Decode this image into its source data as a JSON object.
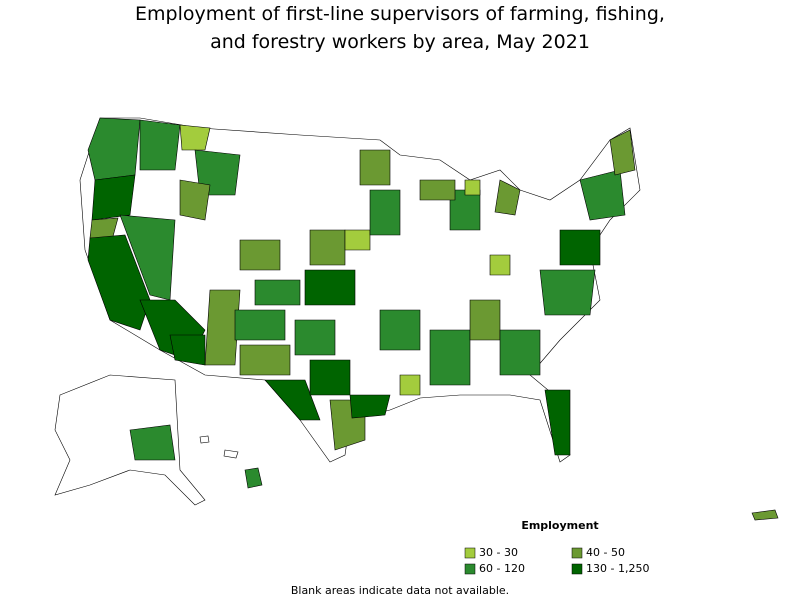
{
  "title": [
    "Employment of first-line supervisors of farming, fishing,",
    "and forestry workers by area, May 2021"
  ],
  "legend": {
    "title": "Employment",
    "items": [
      {
        "label": "30 - 30",
        "color": "#a3cc3d"
      },
      {
        "label": "40 - 50",
        "color": "#6b9932"
      },
      {
        "label": "60 - 120",
        "color": "#2b8a2e"
      },
      {
        "label": "130 - 1,250",
        "color": "#006400"
      }
    ]
  },
  "footnote": "Blank areas indicate data not available."
}
